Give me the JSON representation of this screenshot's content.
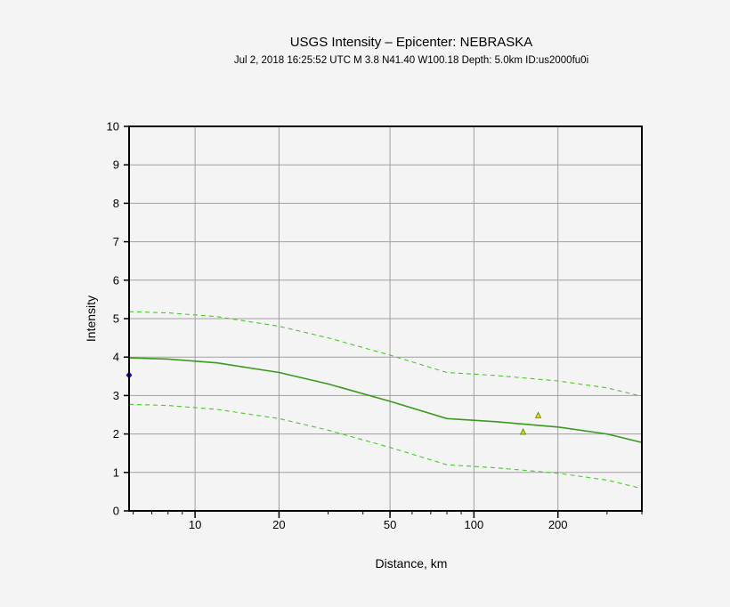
{
  "chart_data": {
    "type": "line",
    "title": "USGS Intensity –  Epicenter: NEBRASKA",
    "subtitle": "Jul  2, 2018 16:25:52 UTC   M 3.8   N41.40 W100.18   Depth: 5.0km   ID:us2000fu0i",
    "xlabel": "Distance, km",
    "ylabel": "Intensity",
    "x_scale": "log",
    "xlim": [
      5.8,
      400
    ],
    "ylim": [
      0,
      10
    ],
    "x_ticks": [
      10,
      20,
      50,
      100,
      200
    ],
    "x_tick_labels": [
      "10",
      "20",
      "50",
      "100",
      "200"
    ],
    "y_ticks": [
      0,
      1,
      2,
      3,
      4,
      5,
      6,
      7,
      8,
      9,
      10
    ],
    "y_tick_labels": [
      "0",
      "1",
      "2",
      "3",
      "4",
      "5",
      "6",
      "7",
      "8",
      "9",
      "10"
    ],
    "grid": true,
    "series": [
      {
        "style": "solid",
        "color": "#3a9a1e",
        "x": [
          5.8,
          8,
          12,
          20,
          30,
          50,
          80,
          120,
          200,
          300,
          400
        ],
        "y": [
          3.98,
          3.95,
          3.85,
          3.6,
          3.3,
          2.85,
          2.4,
          2.32,
          2.18,
          2.0,
          1.78
        ]
      },
      {
        "style": "dashed",
        "color": "#44cc22",
        "x": [
          5.8,
          8,
          12,
          20,
          30,
          50,
          80,
          120,
          200,
          300,
          400
        ],
        "y": [
          5.18,
          5.15,
          5.05,
          4.8,
          4.5,
          4.05,
          3.6,
          3.52,
          3.38,
          3.2,
          2.98
        ]
      },
      {
        "style": "dashed",
        "color": "#44cc22",
        "x": [
          5.8,
          8,
          12,
          20,
          30,
          50,
          80,
          120,
          200,
          300,
          400
        ],
        "y": [
          2.77,
          2.74,
          2.64,
          2.4,
          2.1,
          1.65,
          1.2,
          1.12,
          0.98,
          0.8,
          0.58
        ]
      }
    ],
    "points": [
      {
        "marker": "triangle",
        "x": 150,
        "y": 2.05,
        "fill": "#f5d200",
        "stroke": "#2e8b1e"
      },
      {
        "marker": "triangle",
        "x": 170,
        "y": 2.48,
        "fill": "#f5d200",
        "stroke": "#2e8b1e"
      },
      {
        "marker": "diamond",
        "x": 5.8,
        "y": 3.53,
        "fill": "#1010cc",
        "stroke": "#1010cc"
      }
    ],
    "colors": {
      "background": "#f4f4f4",
      "grid": "#a0a0a0",
      "frame": "#000000"
    }
  }
}
